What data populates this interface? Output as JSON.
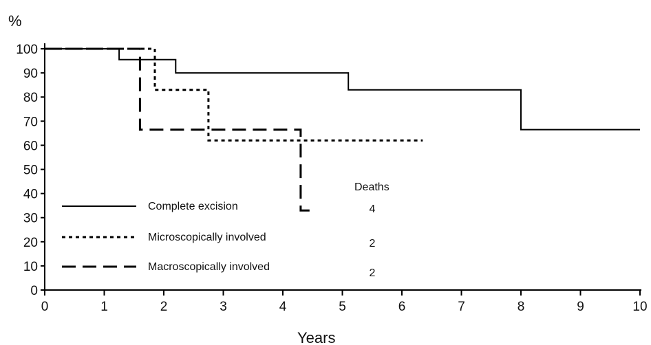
{
  "chart_data": {
    "type": "line",
    "subtype": "step (Kaplan-Meier survival curves)",
    "title": "",
    "ylabel": "%",
    "xlabel": "Years",
    "xlim": [
      0,
      10
    ],
    "ylim": [
      0,
      100
    ],
    "x_ticks": [
      0,
      1,
      2,
      3,
      4,
      5,
      6,
      7,
      8,
      9,
      10
    ],
    "y_ticks": [
      0,
      10,
      20,
      30,
      40,
      50,
      60,
      70,
      80,
      90,
      100
    ],
    "grid": false,
    "legend_placement": "lower-left",
    "legend_header": "Deaths",
    "series": [
      {
        "name": "Complete excision",
        "deaths": "4",
        "line_style": "solid",
        "color": "#000000",
        "points": [
          [
            0,
            100
          ],
          [
            1.25,
            100
          ],
          [
            1.25,
            95.5
          ],
          [
            2.2,
            95.5
          ],
          [
            2.2,
            90
          ],
          [
            5.1,
            90
          ],
          [
            5.1,
            83
          ],
          [
            8.0,
            83
          ],
          [
            8.0,
            66.5
          ],
          [
            10,
            66.5
          ]
        ]
      },
      {
        "name": "Microscopically involved",
        "deaths": "2",
        "line_style": "dotted",
        "color": "#000000",
        "points": [
          [
            0,
            100
          ],
          [
            1.85,
            100
          ],
          [
            1.85,
            83
          ],
          [
            2.75,
            83
          ],
          [
            2.75,
            62
          ],
          [
            6.35,
            62
          ]
        ]
      },
      {
        "name": "Macroscopically involved",
        "deaths": "2",
        "line_style": "dashed",
        "color": "#000000",
        "points": [
          [
            0,
            100
          ],
          [
            1.6,
            100
          ],
          [
            1.6,
            66.5
          ],
          [
            4.3,
            66.5
          ],
          [
            4.3,
            33
          ],
          [
            4.55,
            33
          ]
        ]
      }
    ]
  }
}
